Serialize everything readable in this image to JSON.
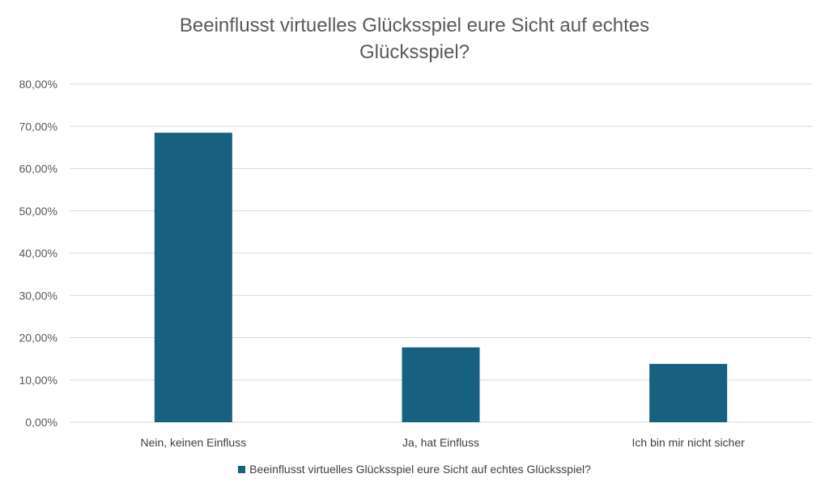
{
  "chart_data": {
    "type": "bar",
    "title_lines": [
      "Beeinflusst virtuelles Glücksspiel eure Sicht auf echtes",
      "Glücksspiel?"
    ],
    "categories": [
      "Nein, keinen Einfluss",
      "Ja, hat Einfluss",
      "Ich bin mir nicht sicher"
    ],
    "series": [
      {
        "name": "Beeinflusst virtuelles Glücksspiel eure Sicht auf echtes Glücksspiel?",
        "values": [
          0.685,
          0.177,
          0.138
        ],
        "color": "#17607f"
      }
    ],
    "ylim": [
      0,
      0.8
    ],
    "yticks": [
      {
        "value": 0.8,
        "label": "80,00%"
      },
      {
        "value": 0.7,
        "label": "70,00%"
      },
      {
        "value": 0.6,
        "label": "60,00%"
      },
      {
        "value": 0.5,
        "label": "50,00%"
      },
      {
        "value": 0.4,
        "label": "40,00%"
      },
      {
        "value": 0.3,
        "label": "30,00%"
      },
      {
        "value": 0.2,
        "label": "20,00%"
      },
      {
        "value": 0.1,
        "label": "10,00%"
      },
      {
        "value": 0.0,
        "label": "0,00%"
      }
    ],
    "grid": true,
    "legend_position": "bottom",
    "colors": {
      "grid": "#d9d9d9",
      "tick_text": "#595959",
      "axis": "#d9d9d9"
    }
  }
}
